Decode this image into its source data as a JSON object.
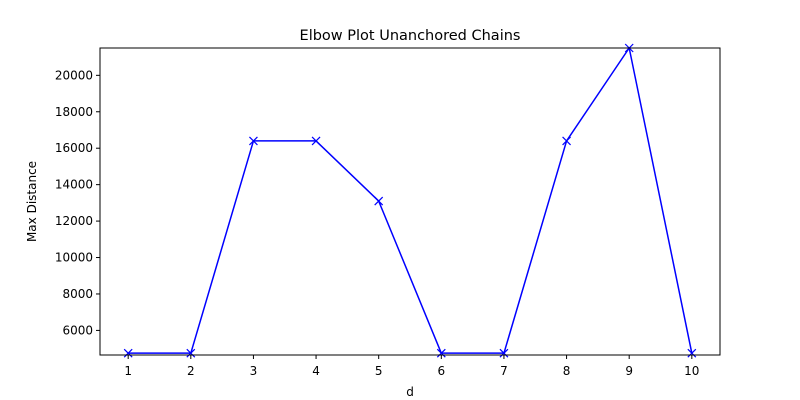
{
  "chart_data": {
    "type": "line",
    "title": "Elbow Plot Unanchored Chains",
    "xlabel": "d",
    "ylabel": "Max Distance",
    "x": [
      1,
      2,
      3,
      4,
      5,
      6,
      7,
      8,
      9,
      10
    ],
    "series": [
      {
        "values": [
          4750,
          4750,
          16400,
          16400,
          13100,
          4750,
          4750,
          16400,
          21500,
          4750
        ],
        "color": "#0000ff",
        "marker": "x"
      }
    ],
    "xlim": [
      0.55,
      10.45
    ],
    "ylim": [
      4650,
      21500
    ],
    "xticks": [
      1,
      2,
      3,
      4,
      5,
      6,
      7,
      8,
      9,
      10
    ],
    "yticks": [
      6000,
      8000,
      10000,
      12000,
      14000,
      16000,
      18000,
      20000
    ],
    "grid": false,
    "legend": "none"
  }
}
